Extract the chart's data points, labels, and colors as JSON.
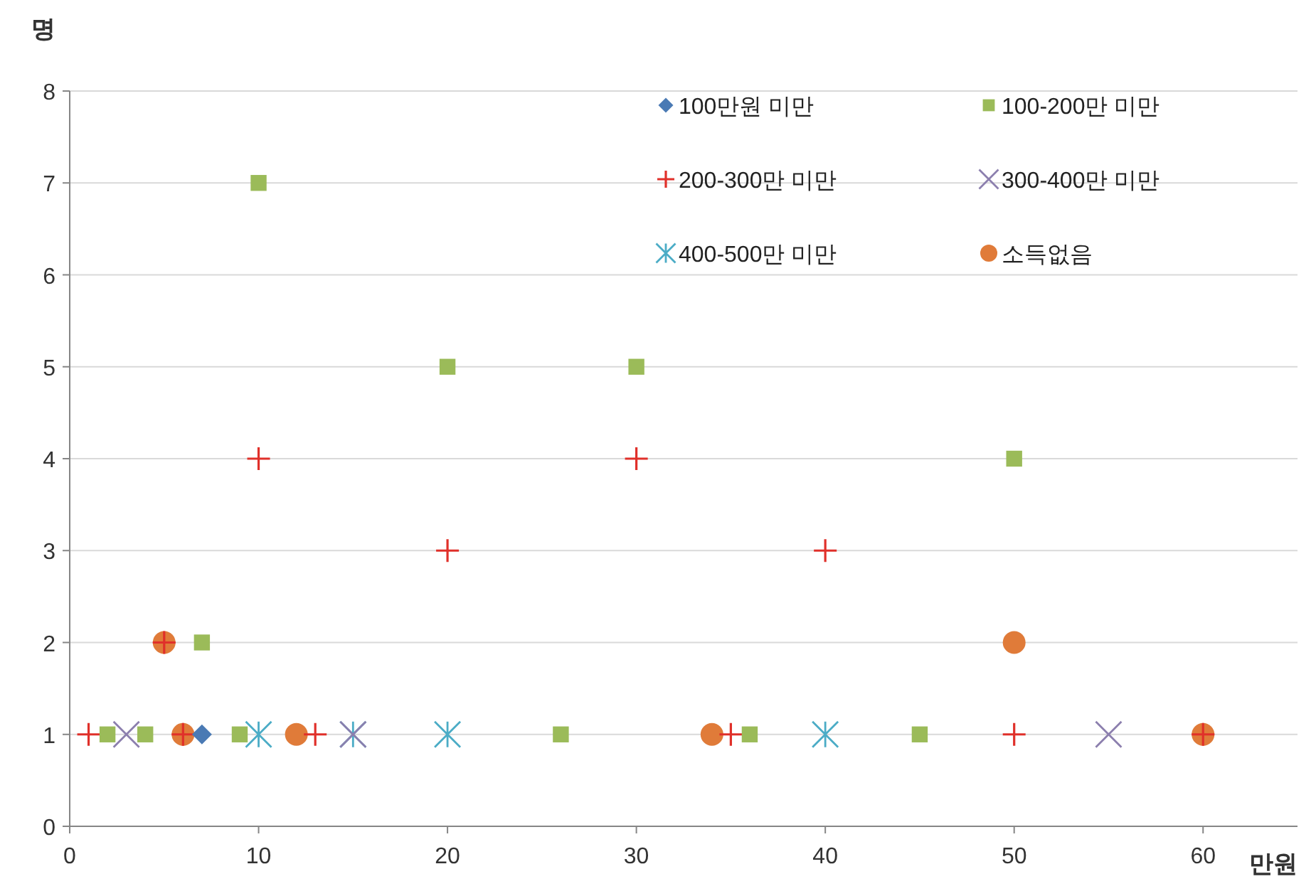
{
  "chart_data": {
    "type": "scatter",
    "xlabel": "만원",
    "ylabel": "명",
    "xlim": [
      0,
      65
    ],
    "xticks": [
      0,
      10,
      20,
      30,
      40,
      50,
      60
    ],
    "ylim": [
      0,
      8
    ],
    "yticks": [
      0,
      1,
      2,
      3,
      4,
      5,
      6,
      7,
      8
    ],
    "grid": "y",
    "legend": "top right",
    "series": [
      {
        "name": "100만원 미만",
        "color": "#4a7ab4",
        "marker": "diamond",
        "x": [
          7
        ],
        "values": [
          1
        ]
      },
      {
        "name": "100-200만 미만",
        "color": "#9bbb59",
        "marker": "square",
        "x": [
          2,
          4,
          9,
          26,
          36,
          45,
          7,
          10,
          20,
          30,
          50
        ],
        "values": [
          1,
          1,
          1,
          1,
          1,
          1,
          2,
          7,
          5,
          5,
          4
        ]
      },
      {
        "name": "200-300만 미만",
        "color": "#e0302a",
        "marker": "cross",
        "x": [
          1,
          6,
          13,
          35,
          50,
          60,
          5,
          10,
          30,
          20,
          40
        ],
        "values": [
          1,
          1,
          1,
          1,
          1,
          1,
          2,
          4,
          4,
          3,
          3
        ]
      },
      {
        "name": "300-400만 미만",
        "color": "#8c7fae",
        "x": [
          3,
          15,
          55
        ],
        "values": [
          1,
          1,
          1
        ]
      },
      {
        "name": "400-500만 미만",
        "color": "#4bacc6",
        "x": [
          10,
          15,
          20,
          40
        ],
        "values": [
          1,
          1,
          1,
          1
        ]
      },
      {
        "name": "소득없음",
        "color": "#e07b39",
        "marker": "circle",
        "x": [
          6,
          12,
          34,
          60,
          5,
          50
        ],
        "values": [
          1,
          1,
          1,
          1,
          2,
          2
        ]
      }
    ]
  }
}
